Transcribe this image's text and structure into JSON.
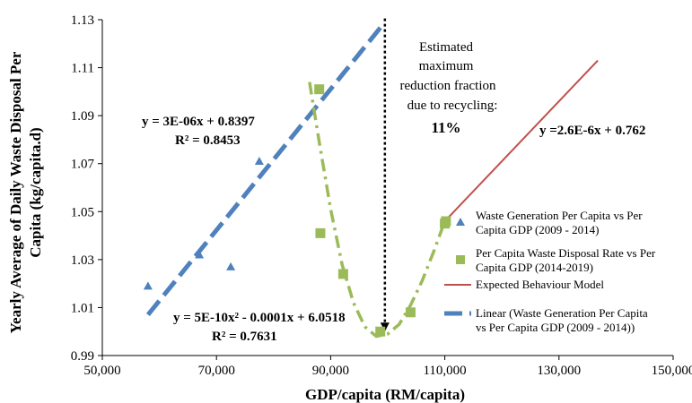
{
  "chart_data": {
    "type": "scatter",
    "xlabel": "GDP/capita (RM/capita)",
    "ylabel_line1": "Yearly Average of Daily Waste Disposal Per",
    "ylabel_line2": "Capita (kg/capita.d)",
    "xlim": [
      50000,
      150000
    ],
    "ylim": [
      0.99,
      1.13
    ],
    "x_ticks": [
      50000,
      70000,
      90000,
      110000,
      130000,
      150000
    ],
    "x_tick_labels": [
      "50,000",
      "70,000",
      "90,000",
      "110,000",
      "130,000",
      "150,000"
    ],
    "y_ticks": [
      0.99,
      1.01,
      1.03,
      1.05,
      1.07,
      1.09,
      1.11,
      1.13
    ],
    "y_tick_labels": [
      "0.99",
      "1.01",
      "1.03",
      "1.05",
      "1.07",
      "1.09",
      "1.11",
      "1.13"
    ],
    "grid": false,
    "legend_position": "bottom-right",
    "colors": {
      "generation": "#4f81bd",
      "disposal": "#9bbb59",
      "expected": "#c0504d",
      "linear": "#4f81bd"
    },
    "series": [
      {
        "key": "generation",
        "name": "Waste Generation Per Capita vs Per Capita GDP (2009 - 2014)",
        "legend_lines": [
          "Waste Generation Per Capita vs Per",
          "Capita GDP (2009 - 2014)"
        ],
        "marker": "triangle",
        "points": [
          [
            58000,
            1.019
          ],
          [
            67000,
            1.032
          ],
          [
            72500,
            1.027
          ],
          [
            77500,
            1.071
          ]
        ]
      },
      {
        "key": "disposal",
        "name": "Per Capita Waste Disposal Rate vs Per Capita GDP (2014-2019)",
        "legend_lines": [
          "Per Capita Waste Disposal Rate vs Per",
          "Capita GDP (2014-2019)"
        ],
        "marker": "square",
        "points": [
          [
            88000,
            1.101
          ],
          [
            88200,
            1.041
          ],
          [
            92200,
            1.024
          ],
          [
            98700,
            1.0
          ],
          [
            104000,
            1.008
          ],
          [
            110000,
            1.045
          ],
          [
            110200,
            1.046
          ]
        ]
      },
      {
        "key": "expected",
        "name": "Expected Behaviour Model",
        "legend_lines": [
          "Expected Behaviour Model"
        ],
        "line": [
          [
            110000,
            1.046
          ],
          [
            136800,
            1.113
          ]
        ]
      },
      {
        "key": "linear",
        "name": "Linear (Waste Generation Per Capita vs Per Capita GDP (2009 - 2014))",
        "legend_lines": [
          "Linear (Waste Generation Per Capita",
          "vs Per Capita GDP (2009 - 2014))"
        ],
        "line": [
          [
            58000,
            1.007
          ],
          [
            99500,
            1.129
          ]
        ]
      }
    ],
    "poly_trend": {
      "points": [
        [
          86300,
          1.104
        ],
        [
          88000,
          1.079
        ],
        [
          90000,
          1.051
        ],
        [
          92000,
          1.028
        ],
        [
          94000,
          1.012
        ],
        [
          96000,
          1.002
        ],
        [
          98000,
          0.998
        ],
        [
          100000,
          0.999
        ],
        [
          102000,
          1.003
        ],
        [
          104000,
          1.011
        ],
        [
          106000,
          1.021
        ],
        [
          108000,
          1.033
        ],
        [
          110000,
          1.046
        ]
      ]
    },
    "reduction_arrow": {
      "x": 99500,
      "y_from": 1.129,
      "y_to": 1.0
    },
    "annotations": {
      "linear_eq": "y = 3E-06x + 0.8397",
      "linear_r2": "R² = 0.8453",
      "poly_eq": "y = 5E-10x² - 0.0001x + 6.0518",
      "poly_r2": "R² = 0.7631",
      "expected_eq": "y =2.6E-6x + 0.762",
      "reduction_lines": [
        "Estimated",
        "maximum",
        "reduction fraction",
        "due to recycling:"
      ],
      "reduction_value": "11%"
    }
  }
}
